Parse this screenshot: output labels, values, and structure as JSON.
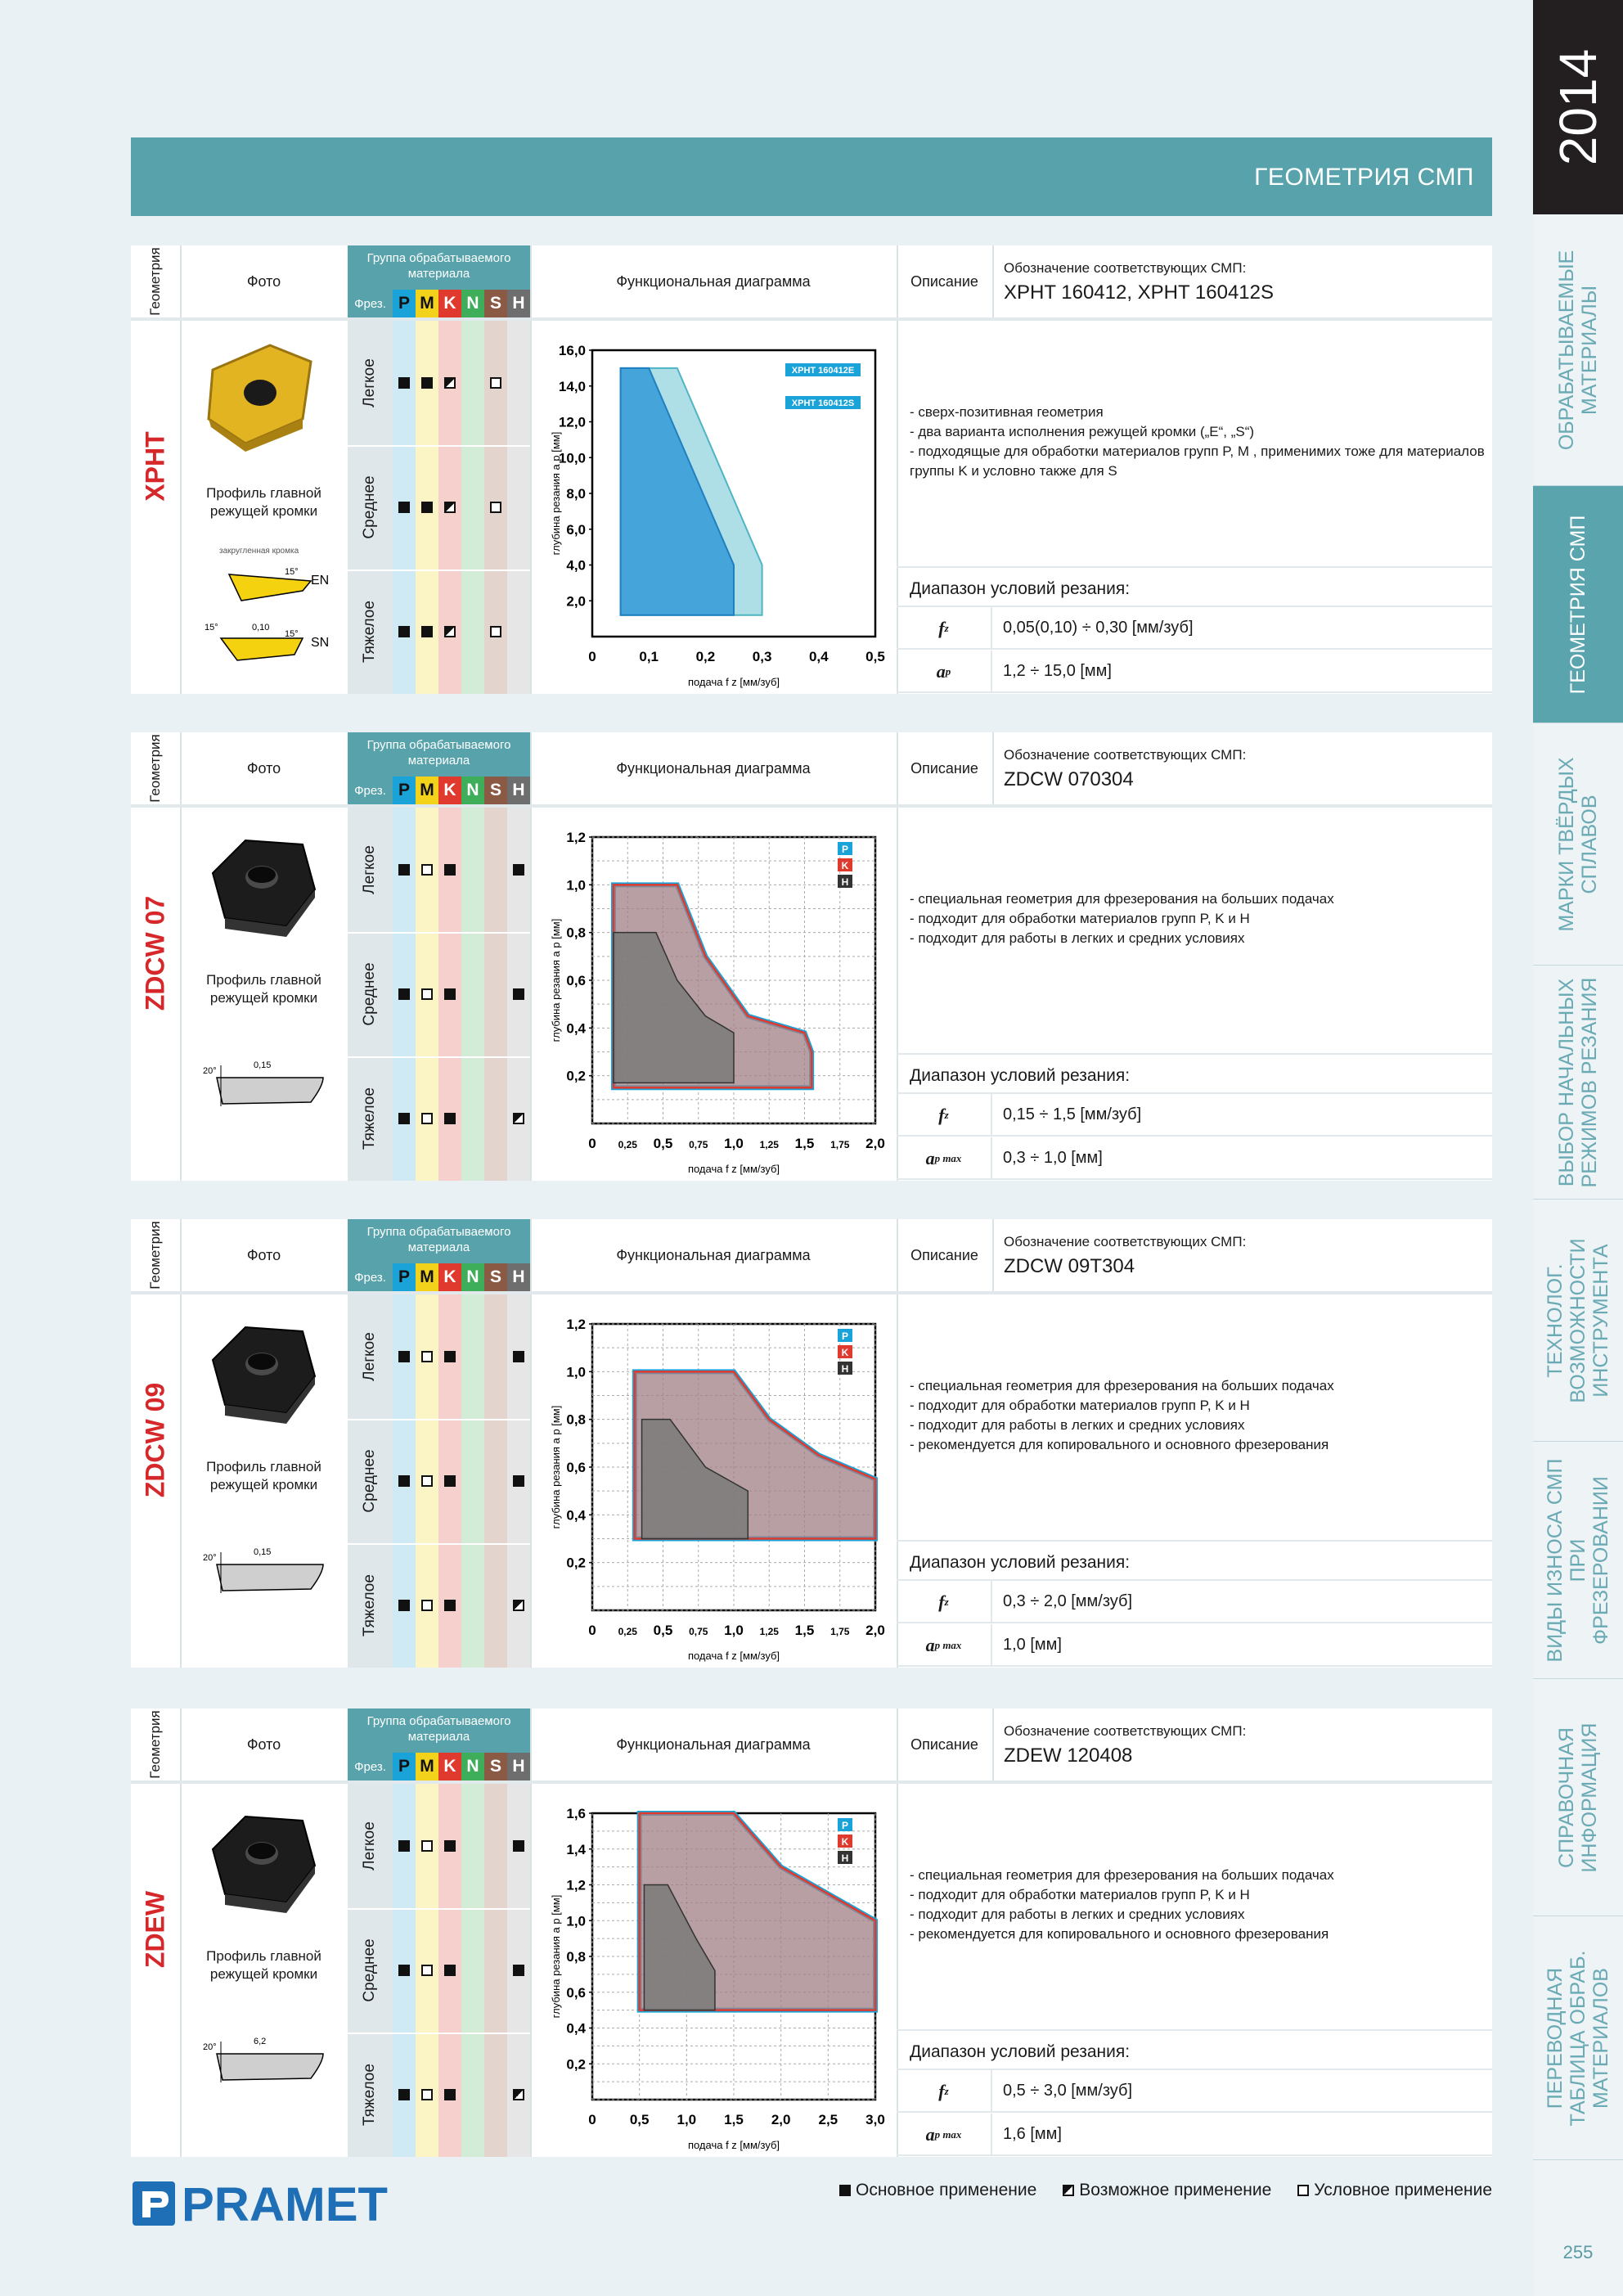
{
  "sidebar": {
    "year": "2014",
    "tabs": [
      {
        "label": "ОБРАБАТЫВАЕМЫЕ МАТЕРИАЛЫ",
        "active": false
      },
      {
        "label": "ГЕОМЕТРИЯ СМП",
        "active": true
      },
      {
        "label": "МАРКИ ТВЁРДЫХ СПЛАВОВ",
        "active": false
      },
      {
        "label": "ВЫБОР НАЧАЛЬНЫХ РЕЖИМОВ РЕЗАНИЯ",
        "active": false
      },
      {
        "label": "ТЕХНОЛОГ. ВОЗМОЖНОСТИ ИНСТРУМЕНТА",
        "active": false
      },
      {
        "label": "ВИДЫ ИЗНОСА СМП ПРИ ФРЕЗЕРОВАНИИ",
        "active": false
      },
      {
        "label": "СПРАВОЧНАЯ ИНФОРМАЦИЯ",
        "active": false
      },
      {
        "label": "ПЕРЕВОДНАЯ ТАБЛИЦА ОБРАБ. МАТЕРИАЛОВ",
        "active": false
      }
    ],
    "page_number": "255"
  },
  "header": {
    "title": "ГЕОМЕТРИЯ СМП"
  },
  "table_header": {
    "geometry": "Геометрия",
    "photo": "Фото",
    "group_title": "Группа обрабатываемого материала",
    "frez": "Фрез.",
    "material_groups": [
      {
        "label": "P",
        "color": "#1aa3d9",
        "bg": "#cfe9f5"
      },
      {
        "label": "M",
        "color": "#f2d21b",
        "bg": "#fbf4c4"
      },
      {
        "label": "K",
        "color": "#e03a2e",
        "bg": "#f6d0cc"
      },
      {
        "label": "N",
        "color": "#3fae5a",
        "bg": "#d2ecd7"
      },
      {
        "label": "S",
        "color": "#8a5a44",
        "bg": "#e3d5cd"
      },
      {
        "label": "H",
        "color": "#6e6e6e",
        "bg": "#e6e6e6"
      }
    ],
    "functional_diagram": "Функциональная диаграмма",
    "description": "Описание",
    "designation_title": "Обозначение соответствующих СМП:"
  },
  "operations": [
    "Легкое",
    "Среднее",
    "Тяжелое"
  ],
  "profile_label": "Профиль главной режущей кромки",
  "range_title": "Диапазон условий резания:",
  "blocks": [
    {
      "name": "XPHT",
      "designation": "XPHT 160412, XPHT 160412S",
      "description": [
        "-  сверх-позитивная геометрия",
        "-  два варианта исполнения режущей кромки („E“, „S“)",
        "-  подходящые для обработки материалов групп P, M , применимих тоже для материалов",
        "   группы K и условно также для S"
      ],
      "marks": [
        [
          "full",
          "full",
          "half",
          "",
          "empty",
          ""
        ],
        [
          "full",
          "full",
          "half",
          "",
          "empty",
          ""
        ],
        [
          "full",
          "full",
          "half",
          "",
          "empty",
          ""
        ]
      ],
      "params": [
        {
          "symbol": "f",
          "sub": "z",
          "value": "0,05(0,10) ÷ 0,30 [мм/зуб]"
        },
        {
          "symbol": "a",
          "sub": "p",
          "value": "1,2 ÷ 15,0 [мм]"
        }
      ],
      "profile": {
        "note": "закругленная кромка",
        "en": "EN",
        "sn": "SN",
        "a1": "15°",
        "a2": "15°",
        "a3": "15°",
        "w": "0,10"
      }
    },
    {
      "name": "ZDCW 07",
      "designation": "ZDCW 070304",
      "description": [
        "-  специальная геометрия для фрезерования на больших подачах",
        "-  подходит для обработки материалов групп P, K и H",
        "-  подходит для работы в легких и средних условиях"
      ],
      "marks": [
        [
          "full",
          "empty",
          "full",
          "",
          "",
          "full"
        ],
        [
          "full",
          "empty",
          "full",
          "",
          "",
          "full"
        ],
        [
          "full",
          "empty",
          "full",
          "",
          "",
          "half"
        ]
      ],
      "params": [
        {
          "symbol": "f",
          "sub": "z",
          "value": "0,15 ÷ 1,5 [мм/зуб]"
        },
        {
          "symbol": "a",
          "sub": "p max",
          "value": "0,3 ÷ 1,0 [мм]"
        }
      ],
      "profile": {
        "angle": "20°",
        "w": "0,15"
      }
    },
    {
      "name": "ZDCW 09",
      "designation": "ZDCW 09T304",
      "description": [
        "-  специальная геометрия для фрезерования на больших подачах",
        "-  подходит для обработки материалов групп P, K и H",
        "-  подходит для работы в легких и средних условиях",
        "-  рекомендуется для копировального и основного фрезерования"
      ],
      "marks": [
        [
          "full",
          "empty",
          "full",
          "",
          "",
          "full"
        ],
        [
          "full",
          "empty",
          "full",
          "",
          "",
          "full"
        ],
        [
          "full",
          "empty",
          "full",
          "",
          "",
          "half"
        ]
      ],
      "params": [
        {
          "symbol": "f",
          "sub": "z",
          "value": "0,3 ÷ 2,0 [мм/зуб]"
        },
        {
          "symbol": "a",
          "sub": "p max",
          "value": "1,0 [мм]"
        }
      ],
      "profile": {
        "angle": "20°",
        "w": "0,15"
      }
    },
    {
      "name": "ZDEW",
      "designation": "ZDEW 120408",
      "description": [
        "-  специальная геометрия для фрезерования на больших подачах",
        "-  подходит для обработки материалов групп P, K и H",
        "-  подходит для работы в легких и средних условиях",
        "-  рекомендуется для копировального и основного фрезерования"
      ],
      "marks": [
        [
          "full",
          "empty",
          "full",
          "",
          "",
          "full"
        ],
        [
          "full",
          "empty",
          "full",
          "",
          "",
          "full"
        ],
        [
          "full",
          "empty",
          "full",
          "",
          "",
          "half"
        ]
      ],
      "params": [
        {
          "symbol": "f",
          "sub": "z",
          "value": "0,5 ÷ 3,0 [мм/зуб]"
        },
        {
          "symbol": "a",
          "sub": "p max",
          "value": "1,6 [мм]"
        }
      ],
      "profile": {
        "angle": "20°",
        "w": "6,2"
      }
    }
  ],
  "chart_data": [
    {
      "type": "area",
      "ylabel": "глубина резания a_p [мм]",
      "xlabel": "подача f_z [мм/зуб]",
      "xlim": [
        0,
        0.5
      ],
      "ylim": [
        0,
        16
      ],
      "xticks": [
        "0",
        "0,1",
        "0,2",
        "0,3",
        "0,4",
        "0,5"
      ],
      "xtick_values": [
        0,
        0.1,
        0.2,
        0.3,
        0.4,
        0.5
      ],
      "yticks": [
        "2,0",
        "4,0",
        "6,0",
        "8,0",
        "10,0",
        "12,0",
        "14,0",
        "16,0"
      ],
      "ytick_values": [
        2,
        4,
        6,
        8,
        10,
        12,
        14,
        16
      ],
      "grid": false,
      "series": [
        {
          "name": "XPHT 160412E",
          "color": "#a6dbe3",
          "stroke": "#4fb4c4",
          "polygon": [
            [
              0.1,
              15
            ],
            [
              0.15,
              15
            ],
            [
              0.3,
              4
            ],
            [
              0.3,
              1.2
            ],
            [
              0.05,
              1.2
            ],
            [
              0.05,
              15
            ]
          ]
        },
        {
          "name": "XPHT 160412S",
          "color": "#3a9fd8",
          "stroke": "#1f7fc1",
          "polygon": [
            [
              0.05,
              15
            ],
            [
              0.1,
              15
            ],
            [
              0.25,
              4
            ],
            [
              0.25,
              1.2
            ],
            [
              0.05,
              1.2
            ]
          ]
        }
      ]
    },
    {
      "type": "area",
      "ylabel": "глубина резания a_p [мм]",
      "xlabel": "подача f_z [мм/зуб]",
      "xlim": [
        0,
        2.0
      ],
      "ylim": [
        0,
        1.2
      ],
      "xticks": [
        "0",
        "0,25",
        "0,5",
        "0,75",
        "1,0",
        "1,25",
        "1,5",
        "1,75",
        "2,0"
      ],
      "xtick_values": [
        0,
        0.25,
        0.5,
        0.75,
        1.0,
        1.25,
        1.5,
        1.75,
        2.0
      ],
      "yticks": [
        "0,2",
        "0,4",
        "0,6",
        "0,8",
        "1,0",
        "1,2"
      ],
      "ytick_values": [
        0.2,
        0.4,
        0.6,
        0.8,
        1.0,
        1.2
      ],
      "grid": true,
      "legend": [
        "P",
        "K",
        "H"
      ],
      "series": [
        {
          "name": "P/K",
          "polygon": [
            [
              0.15,
              1.0
            ],
            [
              0.6,
              1.0
            ],
            [
              0.8,
              0.7
            ],
            [
              1.1,
              0.45
            ],
            [
              1.5,
              0.38
            ],
            [
              1.55,
              0.3
            ],
            [
              1.55,
              0.15
            ],
            [
              0.15,
              0.15
            ]
          ]
        },
        {
          "name": "H",
          "polygon": [
            [
              0.15,
              0.8
            ],
            [
              0.45,
              0.8
            ],
            [
              0.6,
              0.6
            ],
            [
              0.8,
              0.45
            ],
            [
              1.0,
              0.38
            ],
            [
              1.0,
              0.17
            ],
            [
              0.15,
              0.17
            ]
          ]
        }
      ]
    },
    {
      "type": "area",
      "ylabel": "глубина резания a_p [мм]",
      "xlabel": "подача f_z [мм/зуб]",
      "xlim": [
        0,
        2.0
      ],
      "ylim": [
        0,
        1.2
      ],
      "xticks": [
        "0",
        "0,25",
        "0,5",
        "0,75",
        "1,0",
        "1,25",
        "1,5",
        "1,75",
        "2,0"
      ],
      "xtick_values": [
        0,
        0.25,
        0.5,
        0.75,
        1.0,
        1.25,
        1.5,
        1.75,
        2.0
      ],
      "yticks": [
        "0,2",
        "0,4",
        "0,6",
        "0,8",
        "1,0",
        "1,2"
      ],
      "ytick_values": [
        0.2,
        0.4,
        0.6,
        0.8,
        1.0,
        1.2
      ],
      "grid": true,
      "legend": [
        "P",
        "K",
        "H"
      ],
      "series": [
        {
          "name": "P/K",
          "polygon": [
            [
              0.3,
              1.0
            ],
            [
              1.0,
              1.0
            ],
            [
              1.25,
              0.8
            ],
            [
              1.6,
              0.65
            ],
            [
              2.0,
              0.55
            ],
            [
              2.0,
              0.3
            ],
            [
              0.3,
              0.3
            ]
          ]
        },
        {
          "name": "H",
          "polygon": [
            [
              0.35,
              0.8
            ],
            [
              0.55,
              0.8
            ],
            [
              0.8,
              0.6
            ],
            [
              1.1,
              0.5
            ],
            [
              1.1,
              0.3
            ],
            [
              0.35,
              0.3
            ]
          ]
        }
      ]
    },
    {
      "type": "area",
      "ylabel": "глубина резания a_p [мм]",
      "xlabel": "подача f_z [мм/зуб]",
      "xlim": [
        0,
        3.0
      ],
      "ylim": [
        0,
        1.6
      ],
      "xticks": [
        "0",
        "0,5",
        "1,0",
        "1,5",
        "2,0",
        "2,5",
        "3,0"
      ],
      "xtick_values": [
        0,
        0.5,
        1.0,
        1.5,
        2.0,
        2.5,
        3.0
      ],
      "yticks": [
        "0,2",
        "0,4",
        "0,6",
        "0,8",
        "1,0",
        "1,2",
        "1,4",
        "1,6"
      ],
      "ytick_values": [
        0.2,
        0.4,
        0.6,
        0.8,
        1.0,
        1.2,
        1.4,
        1.6
      ],
      "grid": true,
      "legend": [
        "P",
        "K",
        "H"
      ],
      "series": [
        {
          "name": "P/K",
          "polygon": [
            [
              0.5,
              1.6
            ],
            [
              1.5,
              1.6
            ],
            [
              2.0,
              1.3
            ],
            [
              2.5,
              1.15
            ],
            [
              3.0,
              1.0
            ],
            [
              3.0,
              0.5
            ],
            [
              0.5,
              0.5
            ]
          ]
        },
        {
          "name": "H",
          "polygon": [
            [
              0.55,
              1.2
            ],
            [
              0.8,
              1.2
            ],
            [
              1.1,
              0.9
            ],
            [
              1.3,
              0.72
            ],
            [
              1.3,
              0.5
            ],
            [
              0.55,
              0.5
            ]
          ]
        }
      ]
    }
  ],
  "legend": {
    "main": "Основное применение",
    "possible": "Возможное применение",
    "conditional": "Условное применение"
  },
  "logo": "PRAMET"
}
